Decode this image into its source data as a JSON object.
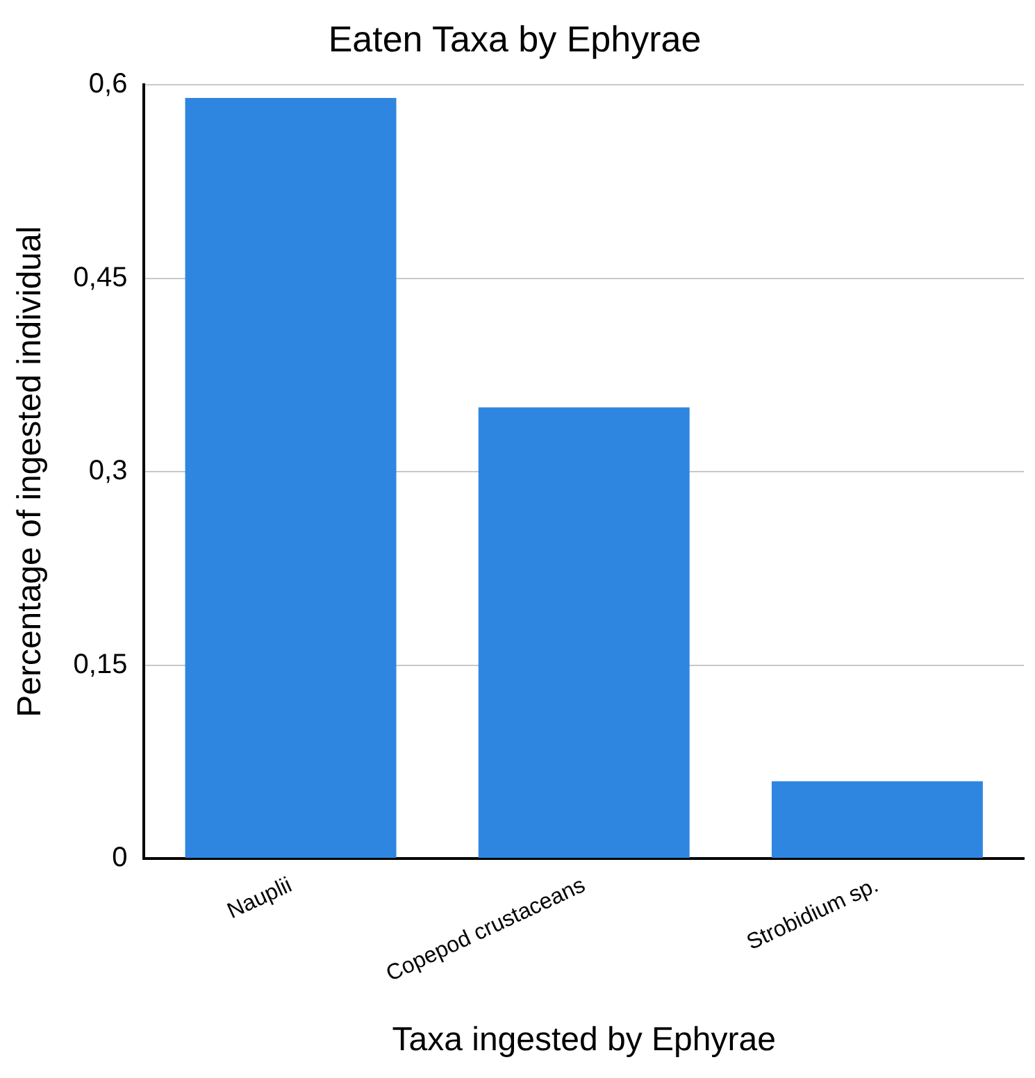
{
  "chart_data": {
    "type": "bar",
    "title": "Eaten Taxa by Ephyrae",
    "xlabel": "Taxa ingested by Ephyrae",
    "ylabel": "Percentage of ingested individual",
    "categories": [
      "Nauplii",
      "Copepod crustaceans",
      "Strobidium sp."
    ],
    "values": [
      0.59,
      0.35,
      0.06
    ],
    "color": "#2f86e0",
    "ylim": [
      0,
      0.6
    ],
    "yticks": [
      {
        "value": 0,
        "label": "0"
      },
      {
        "value": 0.15,
        "label": "0,15"
      },
      {
        "value": 0.3,
        "label": "0,3"
      },
      {
        "value": 0.45,
        "label": "0,45"
      },
      {
        "value": 0.6,
        "label": "0,6"
      }
    ],
    "grid": "y"
  }
}
